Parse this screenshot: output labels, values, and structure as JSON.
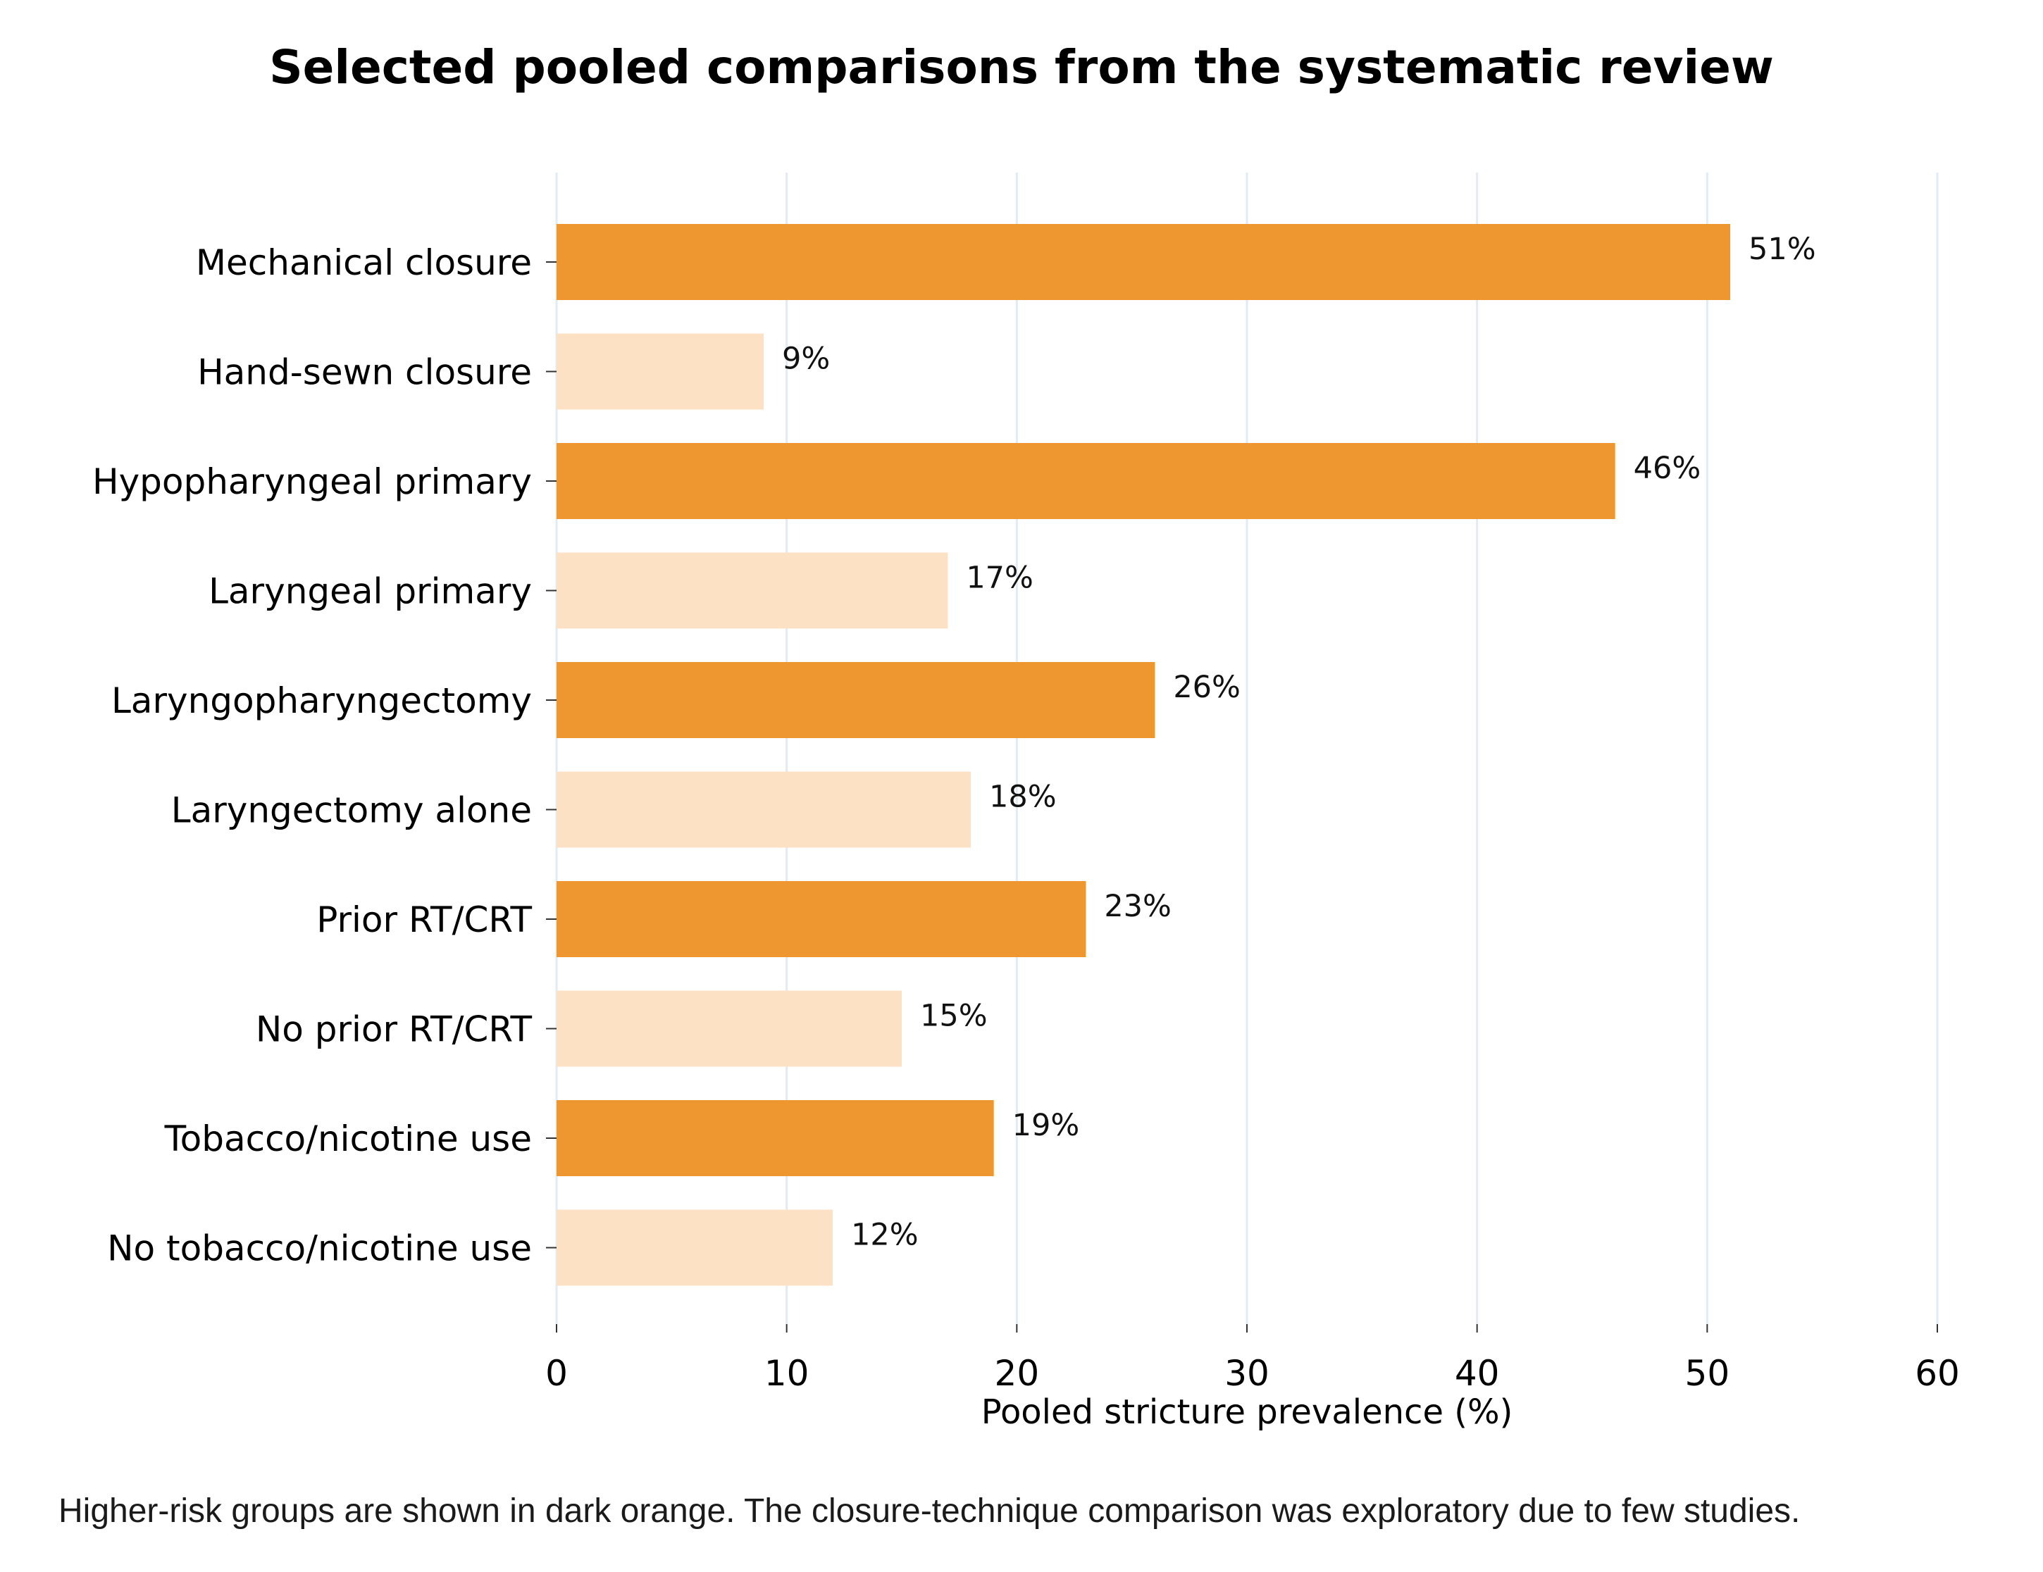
{
  "chart_data": {
    "type": "bar",
    "orientation": "horizontal",
    "title": "Selected pooled comparisons from the systematic review",
    "xlabel": "Pooled stricture prevalence (%)",
    "ylabel": "",
    "xlim": [
      0,
      60
    ],
    "xticks": [
      0,
      10,
      20,
      30,
      40,
      50,
      60
    ],
    "grid": "vertical",
    "categories": [
      "Mechanical closure",
      "Hand-sewn closure",
      "Hypopharyngeal primary",
      "Laryngeal primary",
      "Laryngopharyngectomy",
      "Laryngectomy alone",
      "Prior RT/CRT",
      "No prior RT/CRT",
      "Tobacco/nicotine use",
      "No tobacco/nicotine use"
    ],
    "values": [
      51,
      9,
      46,
      17,
      26,
      18,
      23,
      15,
      19,
      12
    ],
    "value_labels": [
      "51%",
      "9%",
      "46%",
      "17%",
      "26%",
      "18%",
      "23%",
      "15%",
      "19%",
      "12%"
    ],
    "higher_risk": [
      true,
      false,
      true,
      false,
      true,
      false,
      true,
      false,
      true,
      false
    ],
    "colors": {
      "higher_risk": "#ee9730",
      "lower_risk": "#fce1c5",
      "grid": "#e2ebf3",
      "text": "#000000"
    }
  },
  "caption": "Higher-risk groups are shown in dark orange. The closure-technique comparison was exploratory due to few studies."
}
